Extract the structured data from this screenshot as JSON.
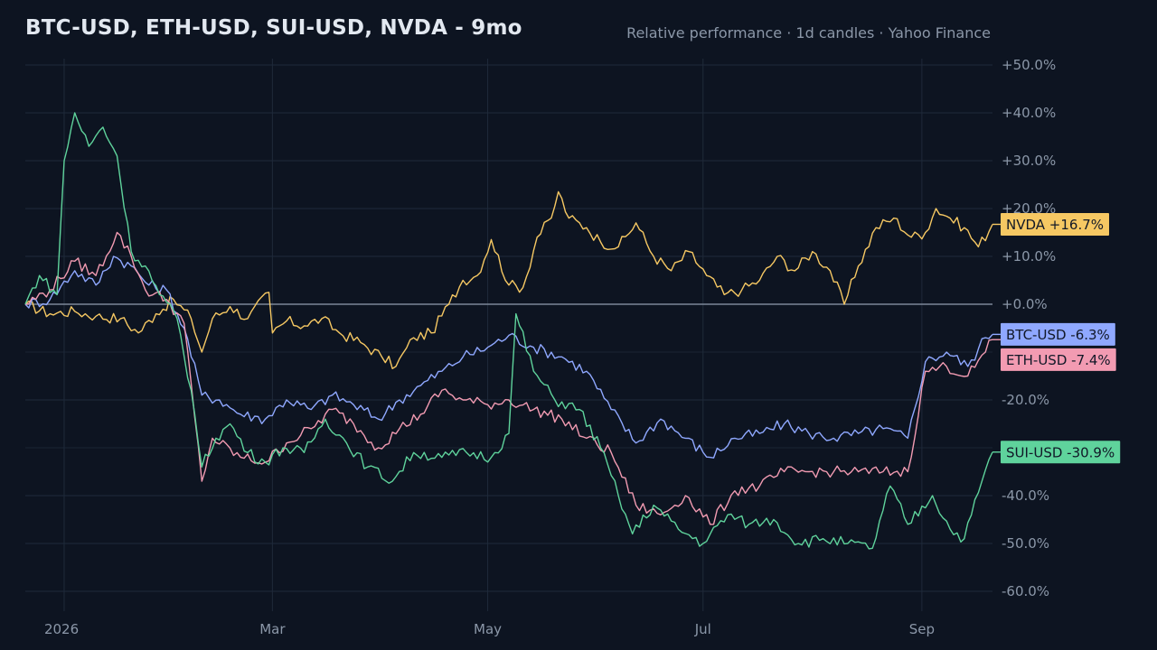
{
  "header": {
    "title": "BTC-USD, ETH-USD, SUI-USD, NVDA - 9mo",
    "subtitle": "Relative performance · 1d candles · Yahoo Finance"
  },
  "chart_data": {
    "type": "line",
    "title": "BTC-USD, ETH-USD, SUI-USD, NVDA - 9mo",
    "subtitle": "Relative performance · 1d candles · Yahoo Finance",
    "x_range": [
      "2025-12-21",
      "2026-09-21"
    ],
    "ylim": [
      -62,
      50
    ],
    "y_ticks": [
      50,
      40,
      30,
      20,
      10,
      0,
      -20,
      -40,
      -50,
      -60
    ],
    "y_tick_labels": [
      "+50.0%",
      "+40.0%",
      "+30.0%",
      "+20.0%",
      "+10.0%",
      "+0.0%",
      "-20.0%",
      "-40.0%",
      "-50.0%",
      "-60.0%"
    ],
    "x_ticks": [
      "2026-01-01",
      "2026-03-01",
      "2026-05-01",
      "2026-07-01",
      "2026-09-01"
    ],
    "x_tick_labels": [
      "2026",
      "Mar",
      "May",
      "Jul",
      "Sep"
    ],
    "grid": true,
    "baseline": 0,
    "series": [
      {
        "name": "NVDA",
        "label": "NVDA  +16.7%",
        "color": "#f6c863",
        "points": [
          [
            "2025-12-21",
            0
          ],
          [
            "2025-12-28",
            -2
          ],
          [
            "2026-01-04",
            -1.5
          ],
          [
            "2026-01-10",
            -2.5
          ],
          [
            "2026-01-17",
            -3
          ],
          [
            "2026-01-22",
            -6
          ],
          [
            "2026-01-27",
            -2
          ],
          [
            "2026-02-01",
            1
          ],
          [
            "2026-02-06",
            -3
          ],
          [
            "2026-02-09",
            -10
          ],
          [
            "2026-02-12",
            -3
          ],
          [
            "2026-02-17",
            -0.5
          ],
          [
            "2026-02-22",
            -3
          ],
          [
            "2026-02-28",
            2.5
          ],
          [
            "2026-03-01",
            -6
          ],
          [
            "2026-03-05",
            -3.5
          ],
          [
            "2026-03-10",
            -4.5
          ],
          [
            "2026-03-15",
            -3
          ],
          [
            "2026-03-20",
            -6
          ],
          [
            "2026-03-26",
            -8
          ],
          [
            "2026-04-01",
            -11
          ],
          [
            "2026-04-05",
            -13
          ],
          [
            "2026-04-10",
            -7
          ],
          [
            "2026-04-15",
            -6
          ],
          [
            "2026-04-20",
            0
          ],
          [
            "2026-04-24",
            5
          ],
          [
            "2026-04-28",
            6
          ],
          [
            "2026-05-02",
            13.5
          ],
          [
            "2026-05-07",
            4
          ],
          [
            "2026-05-11",
            3.5
          ],
          [
            "2026-05-15",
            14
          ],
          [
            "2026-05-19",
            18
          ],
          [
            "2026-05-21",
            23.5
          ],
          [
            "2026-05-24",
            18
          ],
          [
            "2026-05-29",
            16
          ],
          [
            "2026-06-02",
            13
          ],
          [
            "2026-06-07",
            12
          ],
          [
            "2026-06-12",
            17
          ],
          [
            "2026-06-17",
            10
          ],
          [
            "2026-06-22",
            7
          ],
          [
            "2026-06-27",
            11
          ],
          [
            "2026-07-02",
            6
          ],
          [
            "2026-07-07",
            2
          ],
          [
            "2026-07-12",
            3
          ],
          [
            "2026-07-17",
            5
          ],
          [
            "2026-07-22",
            10
          ],
          [
            "2026-07-27",
            7
          ],
          [
            "2026-08-01",
            11
          ],
          [
            "2026-08-06",
            7
          ],
          [
            "2026-08-10",
            0
          ],
          [
            "2026-08-14",
            8
          ],
          [
            "2026-08-19",
            16
          ],
          [
            "2026-08-24",
            18
          ],
          [
            "2026-08-29",
            14
          ],
          [
            "2026-09-02",
            15
          ],
          [
            "2026-09-05",
            20
          ],
          [
            "2026-09-09",
            18
          ],
          [
            "2026-09-13",
            16
          ],
          [
            "2026-09-17",
            12
          ],
          [
            "2026-09-21",
            16.7
          ]
        ]
      },
      {
        "name": "BTC-USD",
        "label": "BTC-USD  -6.3%",
        "color": "#8fa8ff",
        "points": [
          [
            "2025-12-21",
            0
          ],
          [
            "2025-12-28",
            1
          ],
          [
            "2026-01-04",
            7
          ],
          [
            "2026-01-10",
            4
          ],
          [
            "2026-01-15",
            10
          ],
          [
            "2026-01-20",
            8
          ],
          [
            "2026-01-25",
            4
          ],
          [
            "2026-01-30",
            3
          ],
          [
            "2026-02-04",
            -5
          ],
          [
            "2026-02-09",
            -19
          ],
          [
            "2026-02-14",
            -20
          ],
          [
            "2026-02-20",
            -23
          ],
          [
            "2026-02-27",
            -24
          ],
          [
            "2026-03-05",
            -20
          ],
          [
            "2026-03-12",
            -22
          ],
          [
            "2026-03-18",
            -19
          ],
          [
            "2026-03-24",
            -21
          ],
          [
            "2026-03-31",
            -24
          ],
          [
            "2026-04-06",
            -20
          ],
          [
            "2026-04-12",
            -17
          ],
          [
            "2026-04-18",
            -14
          ],
          [
            "2026-04-24",
            -11
          ],
          [
            "2026-05-01",
            -9
          ],
          [
            "2026-05-07",
            -6.5
          ],
          [
            "2026-05-14",
            -9
          ],
          [
            "2026-05-22",
            -11
          ],
          [
            "2026-05-29",
            -14
          ],
          [
            "2026-06-05",
            -22
          ],
          [
            "2026-06-12",
            -29
          ],
          [
            "2026-06-19",
            -24
          ],
          [
            "2026-06-26",
            -28
          ],
          [
            "2026-07-03",
            -32
          ],
          [
            "2026-07-10",
            -28
          ],
          [
            "2026-07-17",
            -27
          ],
          [
            "2026-07-24",
            -25
          ],
          [
            "2026-07-31",
            -27
          ],
          [
            "2026-08-07",
            -28
          ],
          [
            "2026-08-14",
            -27
          ],
          [
            "2026-08-21",
            -26
          ],
          [
            "2026-08-28",
            -28
          ],
          [
            "2026-09-02",
            -12
          ],
          [
            "2026-09-08",
            -10
          ],
          [
            "2026-09-14",
            -13
          ],
          [
            "2026-09-19",
            -7
          ],
          [
            "2026-09-21",
            -6.3
          ]
        ]
      },
      {
        "name": "ETH-USD",
        "label": "ETH-USD  -7.4%",
        "color": "#f29bb2",
        "points": [
          [
            "2025-12-21",
            0
          ],
          [
            "2025-12-28",
            3
          ],
          [
            "2026-01-04",
            9
          ],
          [
            "2026-01-10",
            6
          ],
          [
            "2026-01-16",
            15
          ],
          [
            "2026-01-20",
            10
          ],
          [
            "2026-01-24",
            3
          ],
          [
            "2026-01-30",
            1
          ],
          [
            "2026-02-04",
            -4
          ],
          [
            "2026-02-09",
            -37
          ],
          [
            "2026-02-12",
            -28
          ],
          [
            "2026-02-20",
            -32
          ],
          [
            "2026-02-27",
            -33
          ],
          [
            "2026-03-05",
            -29
          ],
          [
            "2026-03-12",
            -26
          ],
          [
            "2026-03-18",
            -22
          ],
          [
            "2026-03-24",
            -25
          ],
          [
            "2026-03-31",
            -30
          ],
          [
            "2026-04-06",
            -26
          ],
          [
            "2026-04-12",
            -23
          ],
          [
            "2026-04-18",
            -18
          ],
          [
            "2026-04-24",
            -20
          ],
          [
            "2026-05-01",
            -21
          ],
          [
            "2026-05-07",
            -20
          ],
          [
            "2026-05-14",
            -22
          ],
          [
            "2026-05-22",
            -24
          ],
          [
            "2026-05-29",
            -28
          ],
          [
            "2026-06-05",
            -31
          ],
          [
            "2026-06-12",
            -42
          ],
          [
            "2026-06-19",
            -44
          ],
          [
            "2026-06-26",
            -40
          ],
          [
            "2026-07-03",
            -46
          ],
          [
            "2026-07-10",
            -39
          ],
          [
            "2026-07-17",
            -38
          ],
          [
            "2026-07-24",
            -35
          ],
          [
            "2026-07-31",
            -35
          ],
          [
            "2026-08-07",
            -35
          ],
          [
            "2026-08-14",
            -35
          ],
          [
            "2026-08-21",
            -35
          ],
          [
            "2026-08-28",
            -35
          ],
          [
            "2026-09-02",
            -14
          ],
          [
            "2026-09-08",
            -13
          ],
          [
            "2026-09-14",
            -15
          ],
          [
            "2026-09-19",
            -10
          ],
          [
            "2026-09-21",
            -7.4
          ]
        ]
      },
      {
        "name": "SUI-USD",
        "label": "SUI-USD  -30.9%",
        "color": "#5fd39c",
        "points": [
          [
            "2025-12-21",
            0
          ],
          [
            "2025-12-25",
            6
          ],
          [
            "2025-12-30",
            2
          ],
          [
            "2026-01-01",
            30
          ],
          [
            "2026-01-04",
            40
          ],
          [
            "2026-01-08",
            33
          ],
          [
            "2026-01-12",
            37
          ],
          [
            "2026-01-16",
            31
          ],
          [
            "2026-01-20",
            11
          ],
          [
            "2026-01-24",
            8
          ],
          [
            "2026-01-28",
            2
          ],
          [
            "2026-02-02",
            -3
          ],
          [
            "2026-02-06",
            -18
          ],
          [
            "2026-02-09",
            -34
          ],
          [
            "2026-02-13",
            -28
          ],
          [
            "2026-02-17",
            -25
          ],
          [
            "2026-02-22",
            -31
          ],
          [
            "2026-02-27",
            -33
          ],
          [
            "2026-03-04",
            -30
          ],
          [
            "2026-03-10",
            -31
          ],
          [
            "2026-03-16",
            -24
          ],
          [
            "2026-03-22",
            -29
          ],
          [
            "2026-03-28",
            -34
          ],
          [
            "2026-04-04",
            -37
          ],
          [
            "2026-04-10",
            -31
          ],
          [
            "2026-04-18",
            -32
          ],
          [
            "2026-04-25",
            -31
          ],
          [
            "2026-05-02",
            -32
          ],
          [
            "2026-05-07",
            -27
          ],
          [
            "2026-05-09",
            -2
          ],
          [
            "2026-05-14",
            -14
          ],
          [
            "2026-05-20",
            -20
          ],
          [
            "2026-05-27",
            -22
          ],
          [
            "2026-06-02",
            -30
          ],
          [
            "2026-06-07",
            -40
          ],
          [
            "2026-06-11",
            -48
          ],
          [
            "2026-06-17",
            -42
          ],
          [
            "2026-06-24",
            -47
          ],
          [
            "2026-07-01",
            -50
          ],
          [
            "2026-07-08",
            -44
          ],
          [
            "2026-07-14",
            -46
          ],
          [
            "2026-07-21",
            -45
          ],
          [
            "2026-07-28",
            -50
          ],
          [
            "2026-08-04",
            -49
          ],
          [
            "2026-08-11",
            -50
          ],
          [
            "2026-08-18",
            -51
          ],
          [
            "2026-08-23",
            -38
          ],
          [
            "2026-08-28",
            -46
          ],
          [
            "2026-09-04",
            -40
          ],
          [
            "2026-09-09",
            -47
          ],
          [
            "2026-09-13",
            -49
          ],
          [
            "2026-09-18",
            -37
          ],
          [
            "2026-09-21",
            -30.9
          ]
        ]
      }
    ]
  }
}
